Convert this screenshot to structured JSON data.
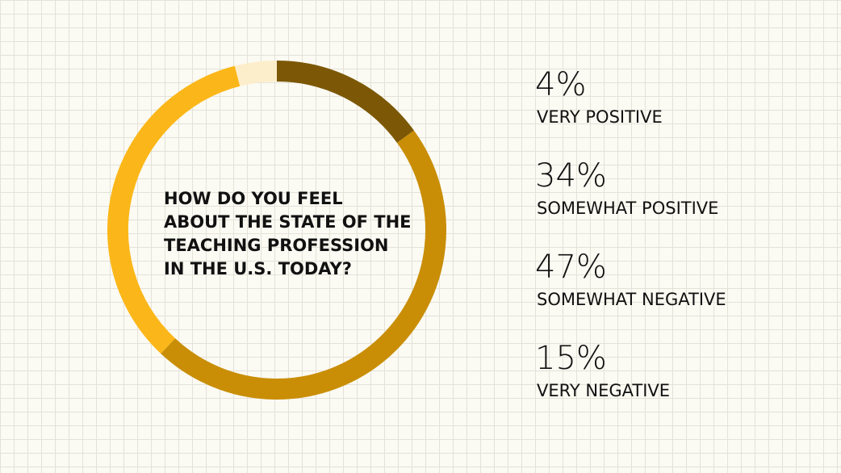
{
  "chart_data": {
    "type": "donut",
    "title": "HOW DO YOU FEEL\nABOUT THE STATE OF THE\nTEACHING PROFESSION\nIN THE U.S. TODAY?",
    "categories": [
      "VERY POSITIVE",
      "SOMEWHAT POSITIVE",
      "SOMEWHAT NEGATIVE",
      "VERY NEGATIVE"
    ],
    "values": [
      4,
      34,
      47,
      15
    ],
    "value_labels": [
      "4%",
      "34%",
      "47%",
      "15%"
    ],
    "colors": [
      "#fdeecb",
      "#fbb719",
      "#c98e06",
      "#7c5806"
    ]
  }
}
